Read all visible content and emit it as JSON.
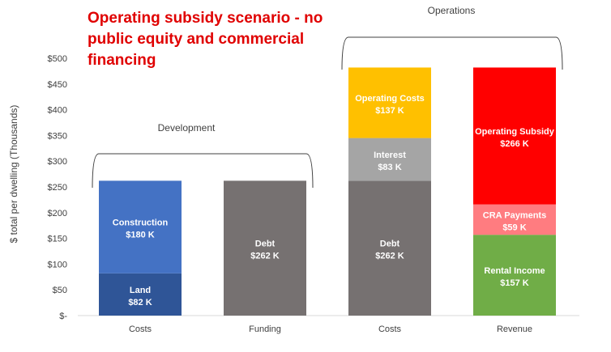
{
  "chart_data": {
    "type": "bar",
    "stacked": true,
    "title": "Operating subsidy scenario - no public equity and commercial financing",
    "ylabel": "$ total per dwelling (Thousands)",
    "xlabel": "",
    "ylim": [
      0,
      500
    ],
    "yticks": [
      "$-",
      "$50",
      "$100",
      "$150",
      "$200",
      "$250",
      "$300",
      "$350",
      "$400",
      "$450",
      "$500"
    ],
    "categories": [
      "Costs",
      "Funding",
      "Costs",
      "Revenue"
    ],
    "groups": [
      {
        "label": "Development",
        "categories": [
          0,
          1
        ]
      },
      {
        "label": "Operations",
        "categories": [
          2,
          3
        ]
      }
    ],
    "bars": [
      {
        "category": "Costs",
        "segments": [
          {
            "name": "Land",
            "value": 82,
            "label": "$82 K",
            "color": "#2f5597"
          },
          {
            "name": "Construction",
            "value": 180,
            "label": "$180 K",
            "color": "#4472c4"
          }
        ]
      },
      {
        "category": "Funding",
        "segments": [
          {
            "name": "Debt",
            "value": 262,
            "label": "$262 K",
            "color": "#767171"
          }
        ]
      },
      {
        "category": "Costs",
        "segments": [
          {
            "name": "Debt",
            "value": 262,
            "label": "$262 K",
            "color": "#767171"
          },
          {
            "name": "Interest",
            "value": 83,
            "label": "$83 K",
            "color": "#a5a5a5"
          },
          {
            "name": "Operating Costs",
            "value": 137,
            "label": "$137 K",
            "color": "#ffc000"
          }
        ]
      },
      {
        "category": "Revenue",
        "segments": [
          {
            "name": "Rental Income",
            "value": 157,
            "label": "$157 K",
            "color": "#70ad47"
          },
          {
            "name": "CRA Payments",
            "value": 59,
            "label": "$59 K",
            "color": "#ff7c80"
          },
          {
            "name": "Operating Subsidy",
            "value": 266,
            "label": "$266 K",
            "color": "#ff0000"
          }
        ]
      }
    ]
  }
}
